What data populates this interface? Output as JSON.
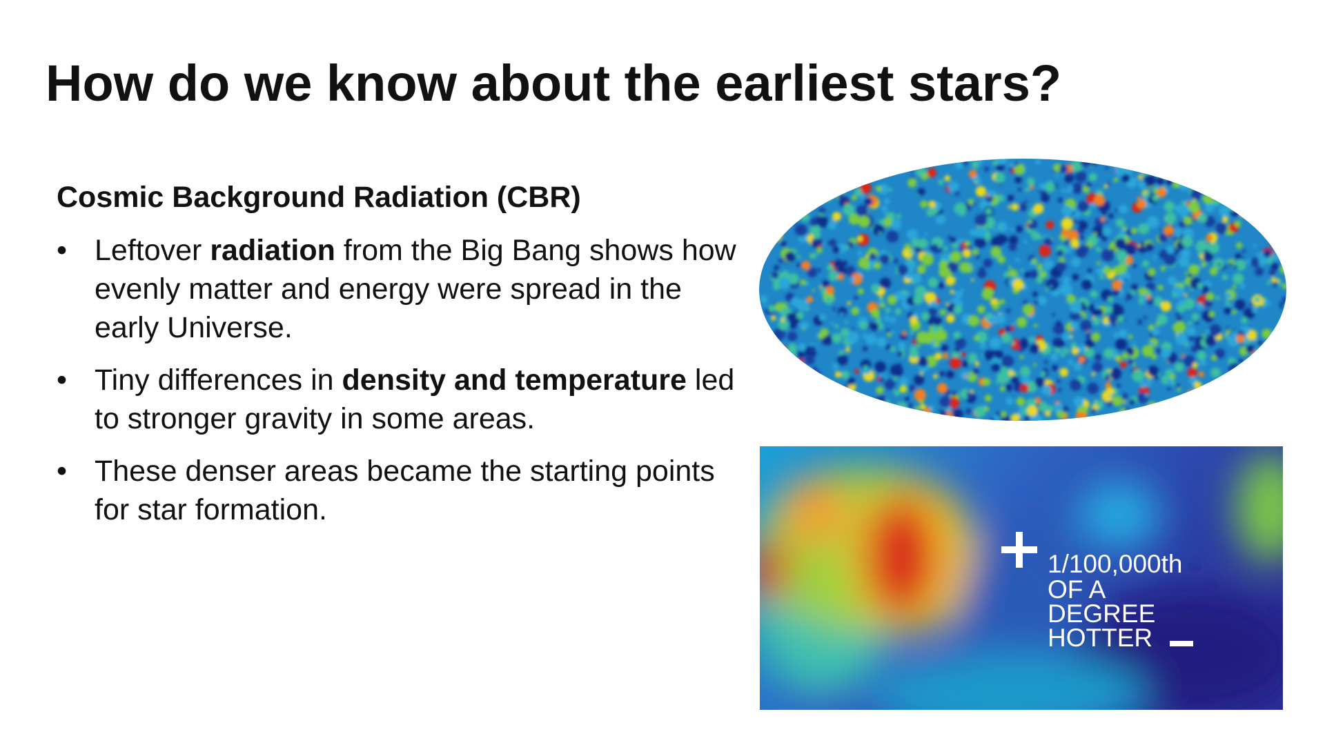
{
  "header": {
    "title": "How do we know about the earliest stars?"
  },
  "section": {
    "heading": "Cosmic Background Radiation (CBR)",
    "bullets": [
      [
        "Leftover ",
        "radiation",
        " from the Big Bang shows how evenly matter and energy were spread in the early Universe."
      ],
      [
        "Tiny differences in ",
        "density and temperature",
        " led to stronger gravity in some areas."
      ],
      [
        "These denser areas became the starting points for star formation."
      ]
    ]
  },
  "figure": {
    "caption_lines": [
      "1/100,000th",
      "OF A",
      "DEGREE",
      "HOTTER"
    ]
  }
}
